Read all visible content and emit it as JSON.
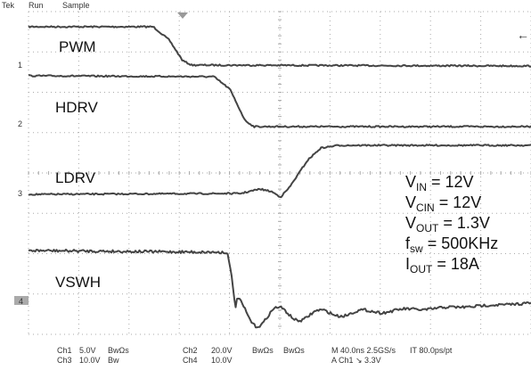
{
  "header": {
    "brand": "Tek",
    "state": "Run",
    "mode": "Sample"
  },
  "traces": [
    {
      "label": "PWM",
      "marker": "1"
    },
    {
      "label": "HDRV",
      "marker": "2"
    },
    {
      "label": "LDRV",
      "marker": "3"
    },
    {
      "label": "VSWH",
      "marker": "4"
    }
  ],
  "conditions": [
    {
      "symbol": "V",
      "sub": "IN",
      "value": "= 12V"
    },
    {
      "symbol": "V",
      "sub": "CIN",
      "value": "= 12V"
    },
    {
      "symbol": "V",
      "sub": "OUT",
      "value": "= 1.3V"
    },
    {
      "symbol": "f",
      "sub": "sw",
      "value": "= 500KHz"
    },
    {
      "symbol": "I",
      "sub": "OUT",
      "value": "= 18A"
    }
  ],
  "status": {
    "row1": [
      "Ch1",
      "5.0V",
      "BwΩs",
      "Ch2",
      "20.0V",
      "BwΩs",
      "BwΩs",
      "M 40.0ns 2.5GS/s",
      "IT 80.0ps/pt"
    ],
    "row2": [
      "Ch3",
      "10.0V",
      "Bw",
      "Ch4",
      "10.0V",
      "A  Ch1  ↘  3.3V"
    ]
  }
}
